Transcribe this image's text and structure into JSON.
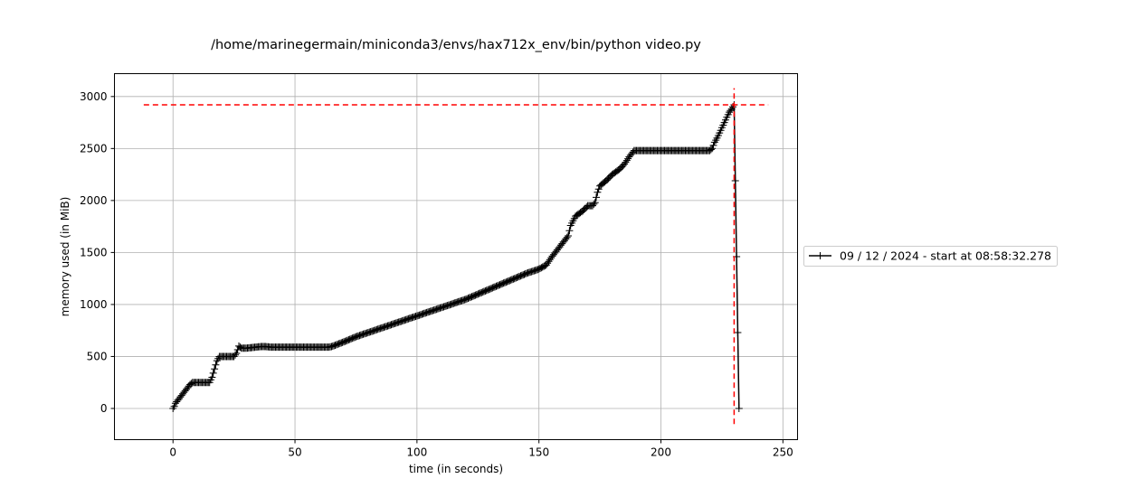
{
  "chart_data": {
    "type": "line",
    "title": "/home/marinegermain/miniconda3/envs/hax712x_env/bin/python video.py",
    "xlabel": "time (in seconds)",
    "ylabel": "memory used (in MiB)",
    "xlim": [
      -24,
      256
    ],
    "ylim": [
      -300,
      3220
    ],
    "xticks": [
      0,
      50,
      100,
      150,
      200,
      250
    ],
    "yticks": [
      0,
      500,
      1000,
      1500,
      2000,
      2500,
      3000
    ],
    "grid": true,
    "legend_position": "right-outside",
    "series": [
      {
        "name": "09 / 12 / 2024 - start at 08:58:32.278",
        "color": "#000000",
        "marker": "+",
        "x": [
          0,
          0.5,
          1,
          2,
          3,
          4,
          5,
          6,
          7,
          8,
          9,
          10,
          11,
          12,
          13,
          14,
          15,
          16,
          17,
          18,
          19,
          20,
          21,
          22,
          23,
          24,
          25,
          26,
          27,
          28,
          29,
          30,
          32,
          34,
          36,
          38,
          40,
          45,
          50,
          55,
          60,
          64,
          65,
          70,
          75,
          80,
          85,
          90,
          95,
          100,
          105,
          110,
          115,
          120,
          125,
          130,
          135,
          140,
          145,
          150,
          153,
          155,
          158,
          160,
          162,
          163,
          165,
          168,
          170,
          172,
          173,
          174,
          175,
          178,
          180,
          183,
          185,
          187,
          189,
          190,
          195,
          200,
          205,
          210,
          215,
          220,
          221,
          222,
          223,
          224,
          225,
          226,
          227,
          228,
          229,
          230,
          232
        ],
        "y": [
          0,
          20,
          50,
          80,
          110,
          140,
          170,
          200,
          230,
          250,
          250,
          250,
          250,
          250,
          250,
          250,
          250,
          300,
          380,
          460,
          500,
          500,
          500,
          500,
          500,
          500,
          500,
          530,
          600,
          580,
          580,
          580,
          585,
          590,
          595,
          595,
          590,
          590,
          590,
          590,
          590,
          590,
          595,
          640,
          690,
          730,
          770,
          810,
          850,
          890,
          930,
          970,
          1010,
          1050,
          1100,
          1150,
          1200,
          1250,
          1300,
          1340,
          1380,
          1450,
          1540,
          1600,
          1660,
          1760,
          1850,
          1900,
          1950,
          1950,
          1980,
          2080,
          2140,
          2200,
          2250,
          2300,
          2350,
          2420,
          2480,
          2480,
          2480,
          2480,
          2480,
          2480,
          2480,
          2480,
          2500,
          2560,
          2600,
          2650,
          2700,
          2750,
          2800,
          2850,
          2880,
          2920,
          0
        ]
      }
    ],
    "annotations": [
      {
        "type": "hline",
        "y": 2920,
        "x_from": -12,
        "x_to": 244,
        "color": "#ff0000",
        "style": "dashed"
      },
      {
        "type": "vline",
        "x": 230,
        "y_from": -150,
        "y_to": 3080,
        "color": "#ff0000",
        "style": "dashed"
      }
    ]
  }
}
